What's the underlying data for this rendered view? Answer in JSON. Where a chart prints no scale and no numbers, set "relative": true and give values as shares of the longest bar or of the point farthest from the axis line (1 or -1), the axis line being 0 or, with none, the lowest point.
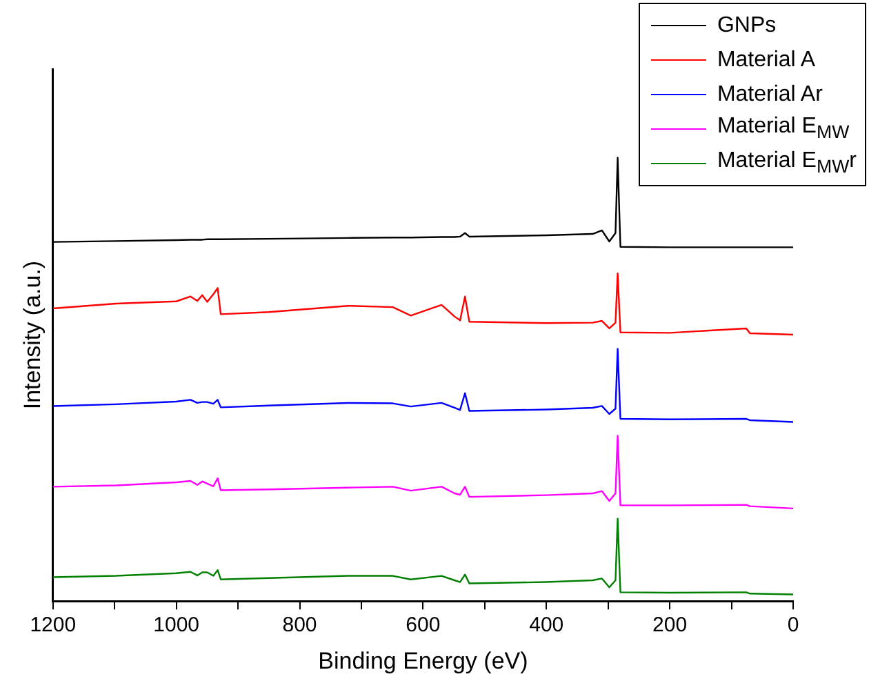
{
  "chart_data": {
    "type": "line",
    "xlabel": "Binding Energy (eV)",
    "ylabel": "Intensity (a.u.)",
    "relative": true,
    "legend": "top right",
    "marker": "none",
    "line_style": "solid",
    "grid": false,
    "tick_labels": "x",
    "xlim": [
      1200,
      0
    ],
    "xticks": [
      1200,
      {
        "value": 1100,
        "label": null
      },
      1000,
      {
        "value": 900,
        "label": null
      },
      800,
      {
        "value": 700,
        "label": null
      },
      600,
      {
        "value": 500,
        "label": null
      },
      400,
      {
        "value": 300,
        "label": null
      },
      200,
      {
        "value": 100,
        "label": null
      },
      0
    ],
    "x": [
      1200,
      1098,
      1000,
      977,
      966,
      958,
      950,
      940,
      933,
      928,
      850,
      722,
      649,
      620,
      570,
      549,
      540,
      532,
      525,
      400,
      325,
      310,
      298,
      288,
      284.5,
      280,
      200,
      76,
      70,
      0
    ],
    "series": [
      {
        "name": "GNPs",
        "color": "#000000",
        "values": [
          0.81,
          0.812,
          0.814,
          0.815,
          0.815,
          0.815,
          0.816,
          0.816,
          0.816,
          0.816,
          0.817,
          0.819,
          0.82,
          0.82,
          0.821,
          0.821,
          0.822,
          0.83,
          0.822,
          0.825,
          0.828,
          0.836,
          0.811,
          0.83,
          1,
          0.799,
          0.798,
          0.798,
          0.798,
          0.798
        ]
      },
      {
        "name": "Material A",
        "color": "#ff0000",
        "values": [
          0.66,
          0.671,
          0.676,
          0.687,
          0.677,
          0.69,
          0.675,
          0.692,
          0.706,
          0.647,
          0.652,
          0.666,
          0.663,
          0.644,
          0.668,
          0.642,
          0.633,
          0.687,
          0.63,
          0.627,
          0.628,
          0.632,
          0.615,
          0.628,
          0.739,
          0.606,
          0.605,
          0.615,
          0.604,
          0.601
        ]
      },
      {
        "name": "Material Ar",
        "color": "#0000ff",
        "values": [
          0.44,
          0.444,
          0.45,
          0.454,
          0.447,
          0.449,
          0.449,
          0.445,
          0.454,
          0.437,
          0.441,
          0.447,
          0.446,
          0.439,
          0.447,
          0.436,
          0.431,
          0.469,
          0.429,
          0.432,
          0.436,
          0.44,
          0.422,
          0.434,
          0.569,
          0.411,
          0.41,
          0.411,
          0.408,
          0.404
        ]
      },
      {
        "name": "Material E$_{MW}$",
        "color": "#ff00ff",
        "values": [
          0.258,
          0.261,
          0.268,
          0.271,
          0.262,
          0.27,
          0.265,
          0.259,
          0.277,
          0.25,
          0.252,
          0.256,
          0.258,
          0.249,
          0.258,
          0.243,
          0.24,
          0.258,
          0.235,
          0.239,
          0.243,
          0.248,
          0.226,
          0.243,
          0.373,
          0.216,
          0.216,
          0.217,
          0.214,
          0.209
        ]
      },
      {
        "name": "Material E$_{MW}$r",
        "color": "#008000",
        "values": [
          0.054,
          0.057,
          0.063,
          0.066,
          0.058,
          0.065,
          0.065,
          0.057,
          0.07,
          0.049,
          0.052,
          0.057,
          0.057,
          0.049,
          0.057,
          0.047,
          0.043,
          0.06,
          0.04,
          0.043,
          0.047,
          0.051,
          0.031,
          0.047,
          0.186,
          0.02,
          0.019,
          0.02,
          0.017,
          0.015
        ]
      }
    ]
  }
}
